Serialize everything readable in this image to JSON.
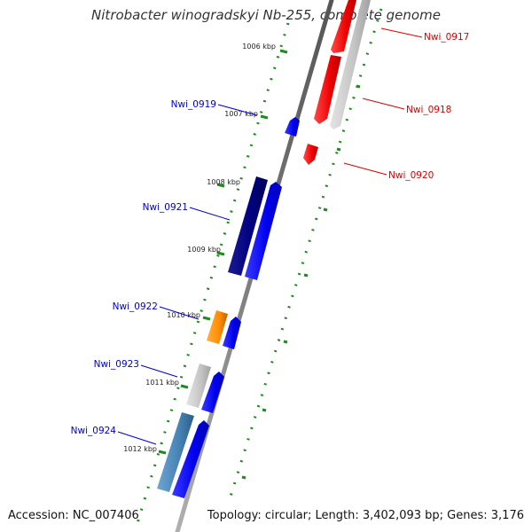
{
  "title": "Nitrobacter winogradskyi Nb-255, complete genome",
  "footer": {
    "accession": "Accession: NC_007406",
    "summary": "Topology: circular; Length: 3,402,093 bp; Genes: 3,176"
  },
  "colors": {
    "backbone": "#888888",
    "tick": "#1f8a1f",
    "forward_label": "#0000cc",
    "reverse_label": "#dd0000"
  },
  "kbp_marks": [
    "1006 kbp",
    "1007 kbp",
    "1008 kbp",
    "1009 kbp",
    "1010 kbp",
    "1011 kbp",
    "1012 kbp"
  ],
  "genes": [
    {
      "id": "Nwi_0917",
      "label": "Nwi_0917",
      "strand": "reverse"
    },
    {
      "id": "Nwi_0918",
      "label": "Nwi_0918",
      "strand": "reverse"
    },
    {
      "id": "Nwi_0919",
      "label": "Nwi_0919",
      "strand": "forward"
    },
    {
      "id": "Nwi_0920",
      "label": "Nwi_0920",
      "strand": "reverse"
    },
    {
      "id": "Nwi_0921",
      "label": "Nwi_0921",
      "strand": "forward"
    },
    {
      "id": "Nwi_0922",
      "label": "Nwi_0922",
      "strand": "forward"
    },
    {
      "id": "Nwi_0923",
      "label": "Nwi_0923",
      "strand": "forward"
    },
    {
      "id": "Nwi_0924",
      "label": "Nwi_0924",
      "strand": "forward"
    }
  ]
}
